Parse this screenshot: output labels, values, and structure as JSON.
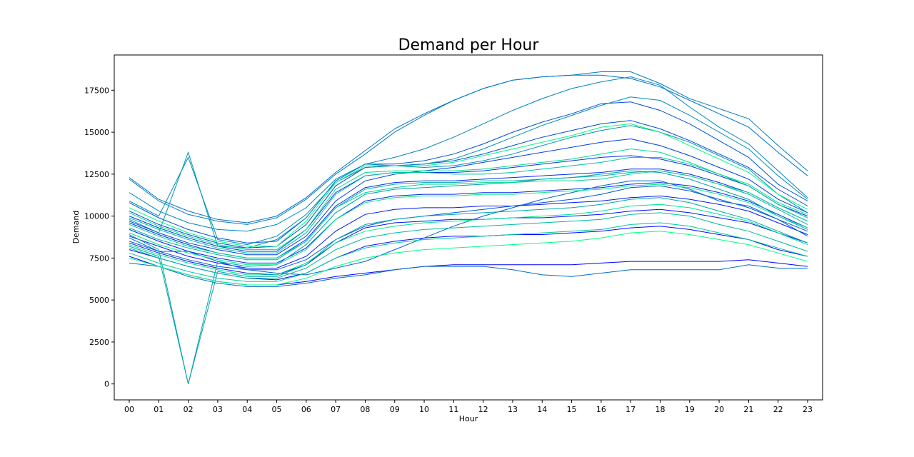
{
  "chart_data": {
    "type": "line",
    "title": "Demand per Hour",
    "xlabel": "Hour",
    "ylabel": "Demand",
    "categories": [
      "00",
      "01",
      "02",
      "03",
      "04",
      "05",
      "06",
      "07",
      "08",
      "09",
      "10",
      "11",
      "12",
      "13",
      "14",
      "15",
      "16",
      "17",
      "18",
      "19",
      "20",
      "21",
      "22",
      "23"
    ],
    "yticks": [
      0,
      2500,
      5000,
      7500,
      10000,
      12500,
      15000,
      17500
    ],
    "ylim": [
      -950,
      19600
    ],
    "grid": false,
    "legend": "none",
    "colormap": {
      "start": "#0000ff",
      "end": "#00ff80"
    },
    "series": [
      {
        "values": [
          7600,
          7000,
          6500,
          6100,
          5900,
          5900,
          6100,
          6400,
          6600,
          6800,
          7000,
          7100,
          7100,
          7100,
          7100,
          7100,
          7200,
          7300,
          7300,
          7300,
          7300,
          7400,
          7200,
          7000
        ]
      },
      {
        "values": [
          8000,
          7500,
          7000,
          6600,
          6300,
          6200,
          6600,
          7500,
          8200,
          8500,
          8700,
          8800,
          8800,
          8900,
          8900,
          9000,
          9100,
          9300,
          9400,
          9200,
          8900,
          8600,
          8000,
          7600
        ]
      },
      {
        "values": [
          8400,
          7800,
          7300,
          6900,
          6600,
          6500,
          7100,
          8400,
          9300,
          9600,
          9700,
          9800,
          9800,
          9900,
          9900,
          10000,
          10100,
          10300,
          10400,
          10200,
          9900,
          9600,
          9000,
          8400
        ]
      },
      {
        "values": [
          8800,
          8200,
          7600,
          7200,
          6900,
          6900,
          7600,
          9100,
          10100,
          10400,
          10500,
          10500,
          10600,
          10600,
          10700,
          10800,
          10900,
          11100,
          11200,
          11000,
          10700,
          10300,
          9600,
          8900
        ]
      },
      {
        "values": [
          9200,
          8500,
          7900,
          7500,
          7200,
          7200,
          8100,
          9800,
          10900,
          11200,
          11300,
          11300,
          11400,
          11400,
          11500,
          11600,
          11700,
          11900,
          12000,
          11800,
          11400,
          10900,
          10100,
          9300
        ]
      },
      {
        "values": [
          9600,
          8900,
          8300,
          7800,
          7500,
          7500,
          8600,
          10600,
          11700,
          12000,
          12100,
          12100,
          12200,
          12300,
          12400,
          12500,
          12600,
          12800,
          12800,
          12500,
          12000,
          11400,
          10500,
          9700
        ]
      },
      {
        "values": [
          10000,
          9300,
          8700,
          8200,
          7900,
          7900,
          9200,
          11400,
          12400,
          12600,
          12600,
          12600,
          12700,
          12900,
          13100,
          13300,
          13500,
          13600,
          13400,
          13000,
          12400,
          11800,
          10700,
          10000
        ]
      },
      {
        "values": [
          9700,
          9000,
          8400,
          8000,
          7700,
          7700,
          8800,
          10900,
          12100,
          12500,
          12700,
          12900,
          13200,
          13500,
          13800,
          14100,
          14400,
          14600,
          14200,
          13600,
          12900,
          12200,
          11000,
          10200
        ]
      },
      {
        "values": [
          10300,
          9500,
          8900,
          8400,
          8100,
          8200,
          9500,
          11800,
          12900,
          13000,
          13100,
          13300,
          13700,
          14200,
          14700,
          15100,
          15500,
          15700,
          15200,
          14500,
          13700,
          12900,
          11600,
          10600
        ]
      },
      {
        "values": [
          10800,
          9900,
          9200,
          8700,
          8400,
          8500,
          9900,
          12100,
          13100,
          13100,
          13300,
          13700,
          14300,
          15000,
          15600,
          16100,
          16700,
          16800,
          16300,
          15500,
          14500,
          13500,
          11900,
          10900
        ]
      },
      {
        "values": [
          8500,
          7900,
          7400,
          7000,
          6800,
          6800,
          7400,
          8600,
          9400,
          9800,
          10000,
          10200,
          10400,
          10600,
          10800,
          11000,
          11300,
          11700,
          11800,
          11500,
          11000,
          10500,
          9800,
          9100
        ]
      },
      {
        "values": [
          8700,
          7900,
          7900,
          7300,
          6800,
          6600,
          6500,
          6900,
          7300,
          8000,
          8700,
          9400,
          10000,
          10500,
          11000,
          11400,
          11800,
          12100,
          12100,
          11600,
          10900,
          10600,
          9800,
          8800
        ]
      },
      {
        "values": [
          7200,
          7000,
          6400,
          6000,
          5800,
          5800,
          6000,
          6300,
          6500,
          6800,
          7000,
          7000,
          7000,
          6800,
          6500,
          6400,
          6600,
          6800,
          6800,
          6800,
          6800,
          7100,
          6900,
          6900
        ]
      },
      {
        "values": [
          12300,
          11000,
          10300,
          9800,
          9600,
          10000,
          11100,
          12600,
          13900,
          15200,
          16100,
          16900,
          17600,
          18100,
          18300,
          18400,
          18400,
          18200,
          17700,
          16900,
          16100,
          15300,
          13800,
          12400
        ]
      },
      {
        "values": [
          12200,
          10900,
          10100,
          9700,
          9500,
          9900,
          11000,
          12500,
          13700,
          15000,
          16000,
          16900,
          17600,
          18100,
          18300,
          18400,
          18600,
          18600,
          17900,
          17000,
          16400,
          15800,
          14200,
          12700
        ]
      },
      {
        "values": [
          11400,
          10300,
          9600,
          9200,
          9100,
          9500,
          10500,
          12200,
          13100,
          13500,
          14000,
          14700,
          15500,
          16300,
          17000,
          17600,
          18000,
          18300,
          17800,
          16500,
          15300,
          14300,
          12700,
          11100
        ]
      },
      {
        "values": [
          10900,
          10000,
          13500,
          8600,
          8300,
          8800,
          10100,
          12000,
          12900,
          13000,
          13100,
          13400,
          14000,
          14700,
          15400,
          16000,
          16600,
          17100,
          16900,
          16000,
          15000,
          14000,
          12400,
          11000
        ]
      },
      {
        "values": [
          9800,
          9000,
          13800,
          8200,
          8100,
          8600,
          9900,
          12100,
          13100,
          13000,
          12900,
          13000,
          13300,
          13700,
          14200,
          14700,
          15100,
          15400,
          15000,
          14400,
          13600,
          12800,
          11300,
          10200
        ]
      },
      {
        "values": [
          8900,
          8000,
          0,
          7300,
          7000,
          7100,
          8300,
          10200,
          11300,
          11600,
          11700,
          11800,
          11900,
          12000,
          12200,
          12300,
          12500,
          12700,
          12600,
          12200,
          11600,
          11000,
          10000,
          9200
        ]
      },
      {
        "values": [
          8200,
          7600,
          0,
          6700,
          6400,
          6400,
          7100,
          8600,
          9500,
          9800,
          10000,
          10100,
          10200,
          10300,
          10400,
          10500,
          10700,
          11000,
          11100,
          10800,
          10300,
          9800,
          9100,
          8400
        ]
      },
      {
        "values": [
          9300,
          8600,
          8100,
          7700,
          7400,
          7400,
          8500,
          10500,
          11600,
          11900,
          12000,
          12000,
          12100,
          12100,
          12200,
          12300,
          12400,
          12600,
          12700,
          12400,
          11900,
          11300,
          10400,
          9500
        ]
      },
      {
        "values": [
          8100,
          7500,
          7000,
          6600,
          6300,
          6300,
          6900,
          8000,
          8700,
          9000,
          9200,
          9300,
          9400,
          9500,
          9600,
          9700,
          9800,
          10100,
          10200,
          10000,
          9500,
          9100,
          8500,
          7900
        ]
      },
      {
        "values": [
          9900,
          9200,
          8600,
          8100,
          7800,
          7800,
          9000,
          11300,
          12400,
          12600,
          12600,
          12500,
          12500,
          12600,
          12800,
          13000,
          13200,
          13500,
          13500,
          13100,
          12500,
          11800,
          10700,
          9900
        ]
      },
      {
        "values": [
          7800,
          7200,
          6700,
          6300,
          6100,
          6100,
          6600,
          7500,
          8100,
          8400,
          8600,
          8700,
          8800,
          8900,
          9000,
          9100,
          9200,
          9500,
          9600,
          9400,
          9000,
          8600,
          8100,
          7600
        ]
      },
      {
        "values": [
          9500,
          8800,
          8200,
          7800,
          7500,
          7500,
          8500,
          10500,
          11400,
          11700,
          11900,
          11900,
          12000,
          12000,
          12100,
          12100,
          12200,
          12500,
          12700,
          12400,
          11900,
          11400,
          10500,
          9700
        ]
      },
      {
        "values": [
          10200,
          9400,
          8800,
          8300,
          8000,
          8000,
          9200,
          11600,
          12600,
          12700,
          12700,
          12700,
          12800,
          13000,
          13200,
          13400,
          13700,
          14000,
          13800,
          13200,
          12500,
          11900,
          10800,
          10100
        ]
      },
      {
        "values": [
          8300,
          7700,
          7200,
          6800,
          6500,
          6500,
          7200,
          8400,
          9100,
          9400,
          9600,
          9700,
          9800,
          9900,
          10000,
          10100,
          10300,
          10600,
          10700,
          10500,
          10100,
          9700,
          9000,
          8300
        ]
      },
      {
        "values": [
          9000,
          8300,
          7800,
          7400,
          7100,
          7100,
          8000,
          9800,
          10800,
          11100,
          11200,
          11200,
          11300,
          11300,
          11400,
          11500,
          11600,
          11800,
          11900,
          11700,
          11300,
          10800,
          10000,
          9300
        ]
      },
      {
        "values": [
          10500,
          9700,
          9000,
          8500,
          8200,
          8200,
          9700,
          12000,
          13000,
          13000,
          13000,
          13200,
          13600,
          14000,
          14400,
          14800,
          15300,
          15500,
          15000,
          14200,
          13400,
          12600,
          11300,
          10400
        ]
      },
      {
        "values": [
          7500,
          7000,
          6500,
          6100,
          5900,
          5900,
          6300,
          7000,
          7500,
          7800,
          8000,
          8100,
          8200,
          8300,
          8400,
          8500,
          8700,
          9000,
          9100,
          8900,
          8600,
          8300,
          7800,
          7300
        ]
      }
    ]
  }
}
